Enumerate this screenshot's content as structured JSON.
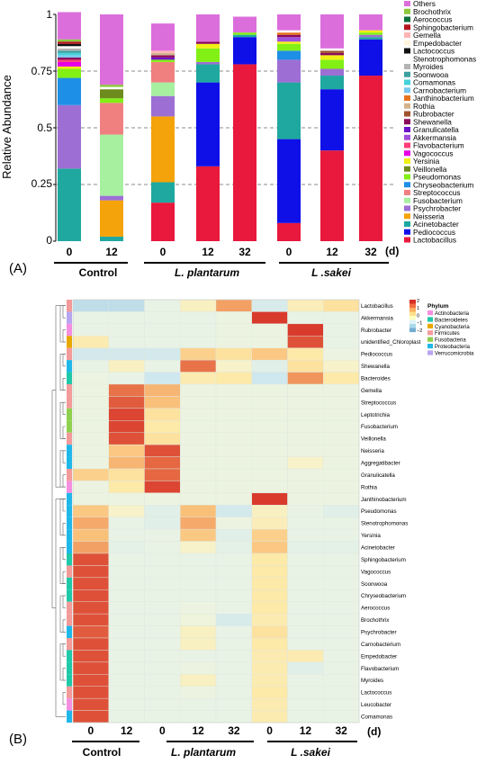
{
  "panelA": {
    "label": "(A)",
    "ylabel": "Relative Abundance",
    "yticks": [
      "0",
      "0.25",
      "0.5",
      "0.75",
      "1"
    ],
    "unit": "(d)",
    "chart_data": {
      "type": "bar",
      "stacked": true,
      "ylim": [
        0,
        1
      ],
      "grid": "dashed horizontal at 0.25, 0.5, 0.75",
      "legend_position": "right",
      "ylabel": "Relative Abundance",
      "categories": [
        "0",
        "12",
        "0",
        "12",
        "32",
        "0",
        "12",
        "32"
      ],
      "groups": [
        {
          "label": "Control",
          "categories": [
            "0",
            "12"
          ]
        },
        {
          "label": "L. plantarum",
          "categories": [
            "0",
            "12",
            "32"
          ]
        },
        {
          "label": "L .sakei",
          "categories": [
            "0",
            "12",
            "32"
          ]
        }
      ],
      "series": [
        {
          "name": "Lactobacillus",
          "color": "#e8193c",
          "values": [
            0.0,
            0.0,
            0.17,
            0.33,
            0.78,
            0.08,
            0.4,
            0.73
          ]
        },
        {
          "name": "Pediococcus",
          "color": "#0f0fe8",
          "values": [
            0.0,
            0.0,
            0.0,
            0.37,
            0.12,
            0.37,
            0.27,
            0.16
          ]
        },
        {
          "name": "Acinetobacter",
          "color": "#1fa8a0",
          "values": [
            0.32,
            0.02,
            0.09,
            0.08,
            0.01,
            0.25,
            0.06,
            0.01
          ]
        },
        {
          "name": "Neisseria",
          "color": "#f5a30a",
          "values": [
            0.0,
            0.16,
            0.29,
            0.0,
            0.0,
            0.0,
            0.0,
            0.0
          ]
        },
        {
          "name": "Psychrobacter",
          "color": "#9d6fd4",
          "values": [
            0.28,
            0.02,
            0.09,
            0.01,
            0.0,
            0.1,
            0.03,
            0.01
          ]
        },
        {
          "name": "Fusobacterium",
          "color": "#a6f0a0",
          "values": [
            0.0,
            0.27,
            0.06,
            0.0,
            0.0,
            0.0,
            0.0,
            0.0
          ]
        },
        {
          "name": "Streptococcus",
          "color": "#f08080",
          "values": [
            0.0,
            0.14,
            0.09,
            0.0,
            0.0,
            0.0,
            0.0,
            0.0
          ]
        },
        {
          "name": "Chryseobacterium",
          "color": "#1e8fe6",
          "values": [
            0.12,
            0.0,
            0.0,
            0.0,
            0.0,
            0.04,
            0.0,
            0.0
          ]
        },
        {
          "name": "Pseudomonas",
          "color": "#82f014",
          "values": [
            0.04,
            0.02,
            0.01,
            0.06,
            0.01,
            0.03,
            0.04,
            0.01
          ]
        },
        {
          "name": "Veillonella",
          "color": "#6e8c1e",
          "values": [
            0.0,
            0.04,
            0.0,
            0.0,
            0.0,
            0.0,
            0.0,
            0.0
          ]
        },
        {
          "name": "Yersinia",
          "color": "#f0f014",
          "values": [
            0.01,
            0.0,
            0.0,
            0.02,
            0.0,
            0.01,
            0.02,
            0.01
          ]
        },
        {
          "name": "Vagococcus",
          "color": "#e600e6",
          "values": [
            0.02,
            0.0,
            0.0,
            0.0,
            0.0,
            0.0,
            0.0,
            0.0
          ]
        },
        {
          "name": "Flavobacterium",
          "color": "#ff3c78",
          "values": [
            0.01,
            0.0,
            0.0,
            0.0,
            0.0,
            0.0,
            0.0,
            0.0
          ]
        },
        {
          "name": "Akkermansia",
          "color": "#a050dc",
          "values": [
            0.0,
            0.0,
            0.0,
            0.0,
            0.0,
            0.02,
            0.0,
            0.0
          ]
        },
        {
          "name": "Granulicatella",
          "color": "#6e14c8",
          "values": [
            0.0,
            0.0,
            0.01,
            0.0,
            0.0,
            0.0,
            0.0,
            0.0
          ]
        },
        {
          "name": "Shewanella",
          "color": "#8c0a5a",
          "values": [
            0.01,
            0.0,
            0.01,
            0.01,
            0.0,
            0.01,
            0.01,
            0.0
          ]
        },
        {
          "name": "Rubrobacter",
          "color": "#a0522d",
          "values": [
            0.0,
            0.0,
            0.0,
            0.0,
            0.0,
            0.0,
            0.01,
            0.0
          ]
        },
        {
          "name": "Rothia",
          "color": "#d2b48c",
          "values": [
            0.0,
            0.0,
            0.01,
            0.0,
            0.0,
            0.0,
            0.0,
            0.0
          ]
        },
        {
          "name": "Janthinobacterium",
          "color": "#e6731e",
          "values": [
            0.0,
            0.0,
            0.0,
            0.0,
            0.0,
            0.01,
            0.0,
            0.0
          ]
        },
        {
          "name": "Carnobacterium",
          "color": "#78c8f0",
          "values": [
            0.01,
            0.0,
            0.0,
            0.0,
            0.0,
            0.0,
            0.0,
            0.0
          ]
        },
        {
          "name": "Comamonas",
          "color": "#46d2dc",
          "values": [
            0.01,
            0.0,
            0.0,
            0.0,
            0.0,
            0.0,
            0.0,
            0.0
          ]
        },
        {
          "name": "Soonwooa",
          "color": "#3ca0a0",
          "values": [
            0.01,
            0.0,
            0.0,
            0.0,
            0.0,
            0.0,
            0.0,
            0.0
          ]
        },
        {
          "name": "Myroides",
          "color": "#b4b4b4",
          "values": [
            0.01,
            0.0,
            0.0,
            0.0,
            0.0,
            0.0,
            0.0,
            0.0
          ]
        },
        {
          "name": "Stenotrophomonas",
          "color": "#ffffff",
          "values": [
            0.01,
            0.01,
            0.0,
            0.0,
            0.0,
            0.01,
            0.01,
            0.0
          ]
        },
        {
          "name": "Lactococcus",
          "color": "#111111",
          "values": [
            0.01,
            0.0,
            0.0,
            0.0,
            0.0,
            0.0,
            0.0,
            0.0
          ]
        },
        {
          "name": "Empedobacter",
          "color": "#fff5dc",
          "values": [
            0.0,
            0.0,
            0.0,
            0.0,
            0.0,
            0.0,
            0.0,
            0.0
          ]
        },
        {
          "name": "Gemella",
          "color": "#ffb4b4",
          "values": [
            0.0,
            0.0,
            0.01,
            0.0,
            0.0,
            0.0,
            0.0,
            0.0
          ]
        },
        {
          "name": "Sphingobacterium",
          "color": "#b4141e",
          "values": [
            0.01,
            0.0,
            0.0,
            0.0,
            0.0,
            0.0,
            0.0,
            0.0
          ]
        },
        {
          "name": "Aerococcus",
          "color": "#0a6e3c",
          "values": [
            0.0,
            0.0,
            0.0,
            0.0,
            0.0,
            0.0,
            0.0,
            0.0
          ]
        },
        {
          "name": "Brochothrix",
          "color": "#8cc83c",
          "values": [
            0.01,
            0.01,
            0.0,
            0.0,
            0.0,
            0.0,
            0.0,
            0.0
          ]
        },
        {
          "name": "Others",
          "color": "#dc6edc",
          "values": [
            0.12,
            0.31,
            0.12,
            0.12,
            0.07,
            0.07,
            0.15,
            0.07
          ]
        }
      ]
    }
  },
  "panelB": {
    "label": "(B)",
    "unit": "(d)",
    "legend_title": "Phylum",
    "scale_ticks": [
      "2",
      "1",
      "0",
      "−1",
      "−2"
    ],
    "scale_colors": [
      "#d73027",
      "#f46d43",
      "#fdae61",
      "#fee08b",
      "#ffffbf",
      "#e0f3f8",
      "#abd9e9",
      "#74add1"
    ],
    "phyla": [
      {
        "name": "Actinobacteria",
        "color": "#f48fe0"
      },
      {
        "name": "Bacteroidetes",
        "color": "#1fc9a8"
      },
      {
        "name": "Cyanobacteria",
        "color": "#e8a800"
      },
      {
        "name": "Firmicutes",
        "color": "#f39a9a"
      },
      {
        "name": "Fusobacteria",
        "color": "#8fd14f"
      },
      {
        "name": "Proteobacteria",
        "color": "#1fb8e8"
      },
      {
        "name": "Verrucomicrobia",
        "color": "#b7a5f0"
      }
    ],
    "chart_data": {
      "type": "heatmap",
      "columns": [
        "0",
        "12",
        "0",
        "12",
        "32",
        "0",
        "12",
        "32"
      ],
      "groups": [
        {
          "label": "Control",
          "columns": [
            "0",
            "12"
          ]
        },
        {
          "label": "L. plantarum",
          "columns": [
            "0",
            "12",
            "32"
          ]
        },
        {
          "label": "L .sakei",
          "columns": [
            "0",
            "12",
            "32"
          ]
        }
      ],
      "value_range": [
        -2,
        2
      ],
      "rows": [
        {
          "name": "Lactobacillus",
          "phylum": "Firmicutes",
          "values": [
            -1.2,
            -1.2,
            -0.4,
            0.2,
            1.3,
            -0.8,
            0.3,
            0.6
          ]
        },
        {
          "name": "Akkermansia",
          "phylum": "Verrucomicrobia",
          "values": [
            -0.4,
            -0.4,
            -0.4,
            -0.4,
            -0.3,
            2.2,
            -0.4,
            -0.4
          ]
        },
        {
          "name": "Rubrobacter",
          "phylum": "Actinobacteria",
          "values": [
            -0.4,
            -0.4,
            -0.4,
            -0.4,
            -0.3,
            -0.3,
            2.2,
            -0.4
          ]
        },
        {
          "name": "unidentified_Chloroplast",
          "phylum": "Cyanobacteria",
          "values": [
            0.4,
            -0.4,
            -0.4,
            -0.4,
            -0.3,
            -0.3,
            2.0,
            -0.4
          ]
        },
        {
          "name": "Pediococcus",
          "phylum": "Firmicutes",
          "values": [
            -0.9,
            -0.9,
            -0.9,
            0.8,
            0.6,
            0.9,
            0.5,
            -0.3
          ]
        },
        {
          "name": "Shewanella",
          "phylum": "Proteobacteria",
          "values": [
            -0.4,
            0.2,
            -0.4,
            1.7,
            0.1,
            -0.6,
            0.6,
            0.1
          ]
        },
        {
          "name": "Bacteroides",
          "phylum": "Bacteroidetes",
          "values": [
            -0.3,
            -0.4,
            -1.0,
            0.4,
            0.5,
            -1.0,
            1.4,
            0.5
          ]
        },
        {
          "name": "Gemella",
          "phylum": "Firmicutes",
          "values": [
            -0.3,
            1.7,
            1.1,
            -0.3,
            -0.3,
            -0.3,
            -0.3,
            -0.3
          ]
        },
        {
          "name": "Streptococcus",
          "phylum": "Firmicutes",
          "values": [
            -0.3,
            1.9,
            1.0,
            -0.3,
            -0.3,
            -0.3,
            -0.3,
            -0.3
          ]
        },
        {
          "name": "Leptotrichia",
          "phylum": "Fusobacteria",
          "values": [
            -0.3,
            2.1,
            0.6,
            -0.3,
            -0.3,
            -0.3,
            -0.3,
            -0.3
          ]
        },
        {
          "name": "Fusobacterium",
          "phylum": "Fusobacteria",
          "values": [
            -0.3,
            2.1,
            0.5,
            -0.3,
            -0.3,
            -0.3,
            -0.3,
            -0.3
          ]
        },
        {
          "name": "Veillonella",
          "phylum": "Firmicutes",
          "values": [
            -0.3,
            2.0,
            0.6,
            -0.3,
            -0.3,
            -0.3,
            -0.3,
            -0.3
          ]
        },
        {
          "name": "Neisseria",
          "phylum": "Proteobacteria",
          "values": [
            -0.3,
            0.9,
            2.0,
            -0.3,
            -0.3,
            -0.3,
            -0.3,
            -0.3
          ]
        },
        {
          "name": "Aggregatibacter",
          "phylum": "Proteobacteria",
          "values": [
            -0.3,
            1.1,
            1.8,
            -0.3,
            -0.3,
            -0.3,
            0.1,
            -0.3
          ]
        },
        {
          "name": "Granulicatella",
          "phylum": "Firmicutes",
          "values": [
            0.8,
            0.6,
            1.8,
            -0.3,
            -0.3,
            -0.3,
            -0.3,
            -0.3
          ]
        },
        {
          "name": "Rothia",
          "phylum": "Actinobacteria",
          "values": [
            -0.3,
            0.5,
            2.1,
            -0.3,
            -0.3,
            -0.3,
            -0.3,
            -0.3
          ]
        },
        {
          "name": "Janthinobacterium",
          "phylum": "Proteobacteria",
          "values": [
            -0.3,
            -0.3,
            -0.3,
            -0.3,
            -0.3,
            2.2,
            -0.3,
            -0.3
          ]
        },
        {
          "name": "Pseudomonas",
          "phylum": "Proteobacteria",
          "values": [
            0.9,
            0.1,
            -0.6,
            1.0,
            -0.9,
            0.2,
            -0.4,
            -0.6
          ]
        },
        {
          "name": "Stenotrophomonas",
          "phylum": "Proteobacteria",
          "values": [
            1.2,
            -0.4,
            -0.6,
            1.2,
            -0.3,
            0.3,
            -0.4,
            -0.4
          ]
        },
        {
          "name": "Yersinia",
          "phylum": "Proteobacteria",
          "values": [
            1.0,
            -0.4,
            -0.4,
            0.9,
            -0.6,
            0.8,
            -0.4,
            -0.4
          ]
        },
        {
          "name": "Acinetobacter",
          "phylum": "Proteobacteria",
          "values": [
            1.3,
            -0.5,
            -0.4,
            0.1,
            -0.5,
            0.9,
            -0.5,
            -0.5
          ]
        },
        {
          "name": "Sphingobacterium",
          "phylum": "Bacteroidetes",
          "values": [
            2.0,
            -0.4,
            -0.4,
            -0.4,
            -0.4,
            0.5,
            -0.4,
            -0.4
          ]
        },
        {
          "name": "Vagococcus",
          "phylum": "Firmicutes",
          "values": [
            2.0,
            -0.4,
            -0.4,
            -0.4,
            -0.4,
            0.5,
            -0.4,
            -0.4
          ]
        },
        {
          "name": "Soonwooa",
          "phylum": "Bacteroidetes",
          "values": [
            2.0,
            -0.4,
            -0.4,
            -0.4,
            -0.4,
            0.5,
            -0.4,
            -0.4
          ]
        },
        {
          "name": "Chryseobacterium",
          "phylum": "Bacteroidetes",
          "values": [
            2.0,
            -0.4,
            -0.4,
            -0.4,
            -0.4,
            0.5,
            -0.4,
            -0.4
          ]
        },
        {
          "name": "Aerococcus",
          "phylum": "Firmicutes",
          "values": [
            2.0,
            -0.4,
            -0.4,
            -0.3,
            -0.4,
            0.5,
            -0.4,
            -0.4
          ]
        },
        {
          "name": "Brochothrix",
          "phylum": "Firmicutes",
          "values": [
            2.0,
            -0.4,
            -0.4,
            -0.2,
            -0.8,
            0.4,
            -0.4,
            -0.4
          ]
        },
        {
          "name": "Psychrobacter",
          "phylum": "Proteobacteria",
          "values": [
            1.9,
            -0.4,
            -0.4,
            0.2,
            -0.4,
            0.6,
            -0.4,
            -0.4
          ]
        },
        {
          "name": "Carnobacterium",
          "phylum": "Firmicutes",
          "values": [
            2.0,
            -0.4,
            -0.4,
            0.2,
            -0.4,
            0.5,
            -0.4,
            -0.4
          ]
        },
        {
          "name": "Empedobacter",
          "phylum": "Bacteroidetes",
          "values": [
            2.0,
            -0.4,
            -0.4,
            -0.4,
            -0.4,
            0.4,
            0.4,
            -0.4
          ]
        },
        {
          "name": "Flavobacterium",
          "phylum": "Bacteroidetes",
          "values": [
            2.0,
            -0.4,
            -0.4,
            -0.3,
            -0.4,
            0.4,
            -0.6,
            -0.4
          ]
        },
        {
          "name": "Myroides",
          "phylum": "Bacteroidetes",
          "values": [
            2.0,
            -0.4,
            -0.4,
            0.2,
            -0.4,
            0.4,
            -0.4,
            -0.4
          ]
        },
        {
          "name": "Lactococcus",
          "phylum": "Firmicutes",
          "values": [
            2.0,
            -0.4,
            -0.4,
            -0.3,
            -0.4,
            0.5,
            -0.4,
            -0.4
          ]
        },
        {
          "name": "Leucobacter",
          "phylum": "Actinobacteria",
          "values": [
            2.0,
            -0.4,
            -0.4,
            -0.4,
            -0.4,
            0.4,
            -0.4,
            -0.4
          ]
        },
        {
          "name": "Comamonas",
          "phylum": "Proteobacteria",
          "values": [
            2.0,
            -0.4,
            -0.4,
            -0.4,
            -0.4,
            0.4,
            -0.4,
            -0.4
          ]
        }
      ]
    }
  }
}
